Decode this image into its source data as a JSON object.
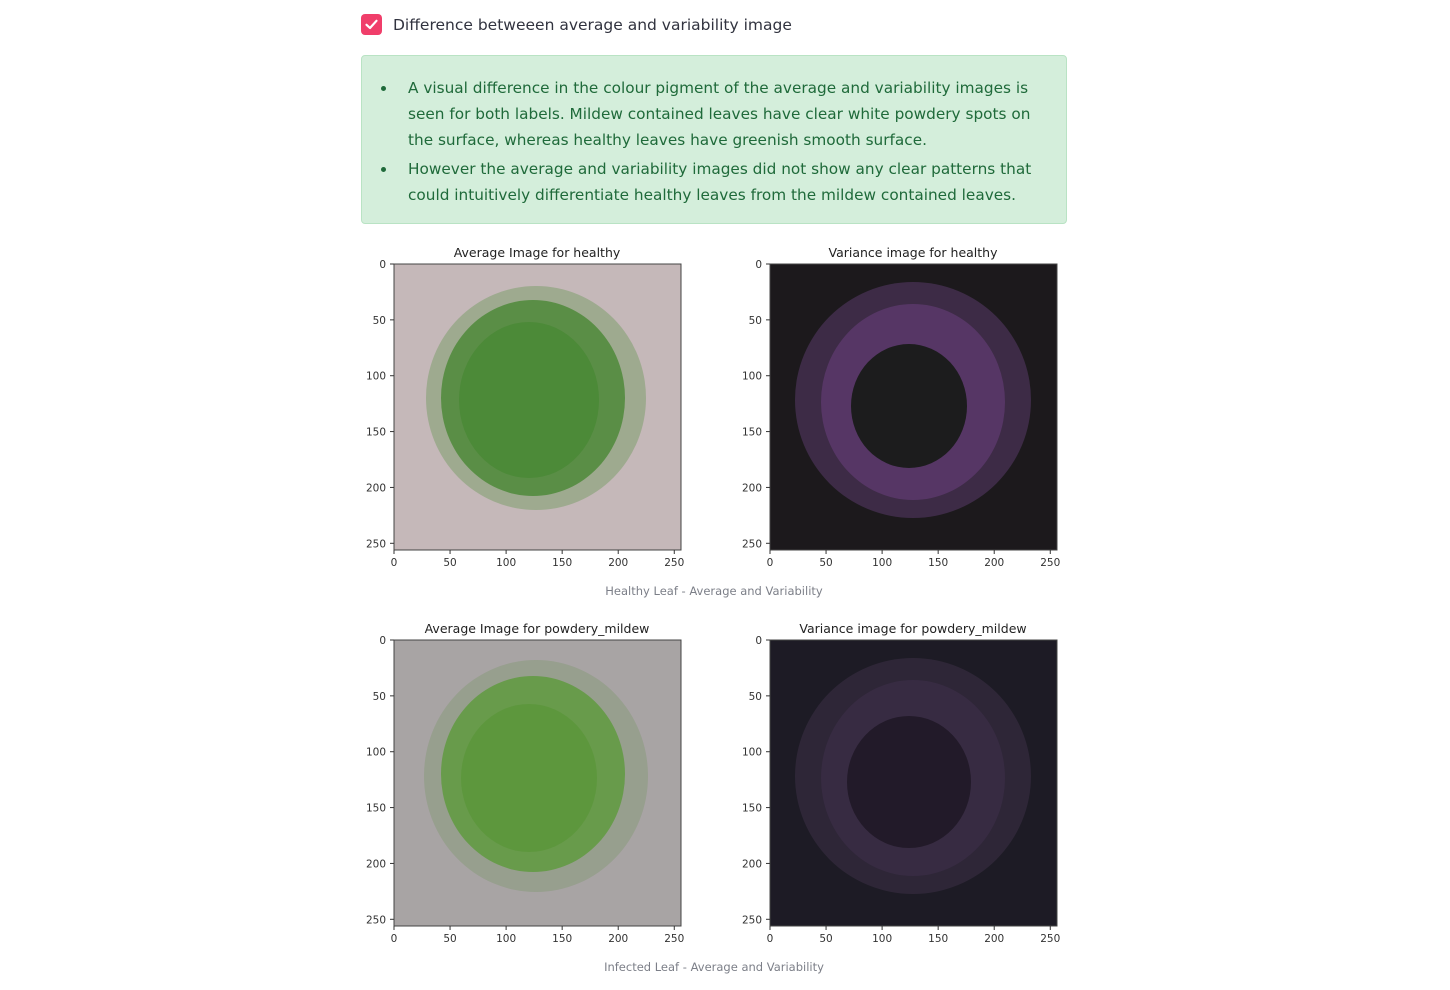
{
  "checkbox": {
    "label": "Difference betweeen average and variability image",
    "checked": true,
    "accent_color": "#f03e6a"
  },
  "info": {
    "bullets": [
      "A visual difference in the colour pigment of the average and variability images is seen for both labels. Mildew contained leaves have clear white powdery spots on the surface, whereas healthy leaves have greenish smooth surface.",
      "However the average and variability images did not show any clear patterns that could intuitively differentiate healthy leaves from the mildew contained leaves."
    ]
  },
  "figures": [
    {
      "caption": "Healthy Leaf - Average and Variability",
      "plots": [
        {
          "title": "Average Image for healthy",
          "kind": "average",
          "background": "#c5b8b9",
          "leaf": "#4d8a3a"
        },
        {
          "title": "Variance image for healthy",
          "kind": "variance",
          "background": "#1c191c",
          "leaf": "#6b3f80"
        }
      ]
    },
    {
      "caption": "Infected Leaf - Average and Variability",
      "plots": [
        {
          "title": "Average Image for powdery_mildew",
          "kind": "average",
          "background": "#a8a4a4",
          "leaf": "#5f9a40"
        },
        {
          "title": "Variance image for powdery_mildew",
          "kind": "variance",
          "background": "#1d1b25",
          "leaf": "#40304c"
        }
      ]
    }
  ],
  "axes": {
    "x_ticks": [
      "0",
      "50",
      "100",
      "150",
      "200",
      "250"
    ],
    "y_ticks": [
      "0",
      "50",
      "100",
      "150",
      "200",
      "250"
    ]
  }
}
